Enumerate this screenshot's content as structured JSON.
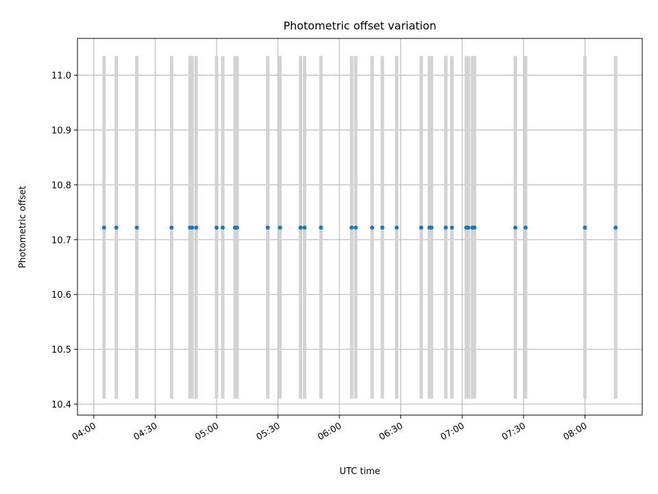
{
  "chart_data": {
    "type": "scatter",
    "title": "Photometric offset variation",
    "xlabel": "UTC time",
    "ylabel": "Photometric offset",
    "xlim": [
      "03:52",
      "08:28"
    ],
    "ylim": [
      10.38,
      11.067
    ],
    "grid": true,
    "x_ticks": [
      "04:00",
      "04:30",
      "05:00",
      "05:30",
      "06:00",
      "06:30",
      "07:00",
      "07:30",
      "08:00"
    ],
    "y_ticks": [
      "10.4",
      "10.5",
      "10.6",
      "10.7",
      "10.8",
      "10.9",
      "11.0"
    ],
    "error_bar_range": [
      10.41,
      11.035
    ],
    "colors": {
      "points": "#1f77b4",
      "error_bars": "#d3d3d3",
      "grid": "#b0b0b0"
    },
    "series": [
      {
        "x": [
          "04:05",
          "04:11",
          "04:21",
          "04:38",
          "04:47",
          "04:48",
          "04:50",
          "05:00",
          "05:03",
          "05:09",
          "05:10",
          "05:25",
          "05:31",
          "05:41",
          "05:43",
          "05:51",
          "06:06",
          "06:08",
          "06:16",
          "06:21",
          "06:28",
          "06:40",
          "06:44",
          "06:45",
          "06:52",
          "06:55",
          "07:02",
          "07:03",
          "07:05",
          "07:06",
          "07:26",
          "07:31",
          "08:00",
          "08:15"
        ],
        "y": [
          10.722,
          10.722,
          10.722,
          10.722,
          10.722,
          10.722,
          10.722,
          10.722,
          10.722,
          10.722,
          10.722,
          10.722,
          10.722,
          10.722,
          10.722,
          10.722,
          10.722,
          10.722,
          10.722,
          10.722,
          10.722,
          10.722,
          10.722,
          10.722,
          10.722,
          10.722,
          10.722,
          10.722,
          10.722,
          10.722,
          10.722,
          10.722,
          10.722,
          10.722
        ]
      }
    ]
  }
}
